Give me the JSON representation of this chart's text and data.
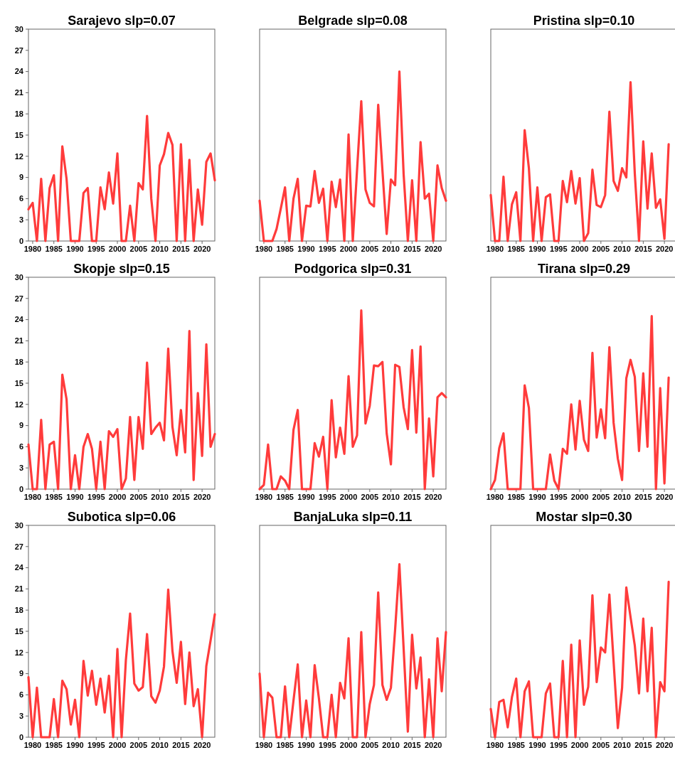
{
  "chart_data": [
    {
      "type": "line",
      "title": "Sarajevo slp=0.07",
      "x": [
        1979,
        1980,
        1981,
        1982,
        1983,
        1984,
        1985,
        1986,
        1987,
        1988,
        1989,
        1990,
        1991,
        1992,
        1993,
        1994,
        1995,
        1996,
        1997,
        1998,
        1999,
        2000,
        2001,
        2002,
        2003,
        2004,
        2005,
        2006,
        2007,
        2008,
        2009,
        2010,
        2011,
        2012,
        2013,
        2014,
        2015,
        2016,
        2017,
        2018,
        2019,
        2020,
        2021,
        2022,
        2023
      ],
      "xlim": [
        1979,
        2023
      ],
      "xticks": [
        1980,
        1985,
        1990,
        1995,
        2000,
        2005,
        2010,
        2015,
        2020
      ],
      "ylim": [
        0,
        30
      ],
      "yticks": [
        0,
        3,
        6,
        9,
        12,
        15,
        18,
        21,
        24,
        27,
        30
      ],
      "series": [
        {
          "color": "#ff3b3b",
          "values": [
            4.5,
            5.4,
            0,
            8.8,
            0,
            7.5,
            9.3,
            0,
            13.4,
            8.8,
            0,
            0,
            0,
            6.8,
            7.5,
            0,
            0,
            7.6,
            4.5,
            9.7,
            5.3,
            12.4,
            0,
            0,
            5.0,
            0,
            8.2,
            7.3,
            17.7,
            6,
            0,
            10.7,
            12.3,
            15.3,
            13.6,
            0,
            13.7,
            0,
            11.5,
            0,
            7.3,
            2.3,
            11.2,
            12.4,
            8.6
          ]
        }
      ]
    },
    {
      "type": "line",
      "title": "Belgrade slp=0.08",
      "x": [
        1979,
        1980,
        1981,
        1982,
        1983,
        1984,
        1985,
        1986,
        1987,
        1988,
        1989,
        1990,
        1991,
        1992,
        1993,
        1994,
        1995,
        1996,
        1997,
        1998,
        1999,
        2000,
        2001,
        2002,
        2003,
        2004,
        2005,
        2006,
        2007,
        2008,
        2009,
        2010,
        2011,
        2012,
        2013,
        2014,
        2015,
        2016,
        2017,
        2018,
        2019,
        2020,
        2021,
        2022,
        2023
      ],
      "xlim": [
        1979,
        2023
      ],
      "xticks": [
        1980,
        1985,
        1990,
        1995,
        2000,
        2005,
        2010,
        2015,
        2020
      ],
      "ylim": [
        0,
        30
      ],
      "yticks": [
        0,
        3,
        6,
        9,
        12,
        15,
        18,
        21,
        24,
        27,
        30
      ],
      "tick_labels": "x",
      "series": [
        {
          "color": "#ff3b3b",
          "values": [
            5.7,
            0,
            0,
            0,
            1.7,
            4.6,
            7.6,
            0,
            6.0,
            8.8,
            0,
            5.0,
            4.9,
            9.9,
            5.4,
            7.4,
            0,
            8.4,
            4.8,
            8.7,
            0,
            15.1,
            0,
            10,
            19.8,
            7.3,
            5.4,
            4.9,
            19.3,
            10,
            1.0,
            8.7,
            7.9,
            24.0,
            9.5,
            0,
            8.6,
            0,
            14.0,
            6.0,
            6.7,
            0,
            10.7,
            7.5,
            5.7
          ]
        }
      ]
    },
    {
      "type": "line",
      "title": "Pristina slp=0.10",
      "x": [
        1979,
        1980,
        1981,
        1982,
        1983,
        1984,
        1985,
        1986,
        1987,
        1988,
        1989,
        1990,
        1991,
        1992,
        1993,
        1994,
        1995,
        1996,
        1997,
        1998,
        1999,
        2000,
        2001,
        2002,
        2003,
        2004,
        2005,
        2006,
        2007,
        2008,
        2009,
        2010,
        2011,
        2012,
        2013,
        2014,
        2015,
        2016,
        2017,
        2018,
        2019,
        2020,
        2021
      ],
      "xlim": [
        1979,
        2023
      ],
      "xticks": [
        1980,
        1985,
        1990,
        1995,
        2000,
        2005,
        2010,
        2015,
        2020
      ],
      "ylim": [
        0,
        30
      ],
      "yticks": [
        0,
        3,
        6,
        9,
        12,
        15,
        18,
        21,
        24,
        27,
        30
      ],
      "tick_labels": "x",
      "series": [
        {
          "color": "#ff3b3b",
          "values": [
            6.5,
            0,
            0,
            9.1,
            0,
            5.2,
            6.9,
            0,
            15.7,
            10.3,
            0,
            7.6,
            0,
            6.2,
            6.6,
            0,
            0,
            8.5,
            5.5,
            9.9,
            5.3,
            8.9,
            0,
            1.1,
            10.1,
            5.1,
            4.8,
            6.5,
            18.3,
            8.5,
            7.1,
            10.3,
            9.0,
            22.5,
            9.6,
            0,
            14.1,
            4.6,
            12.4,
            4.7,
            5.9,
            0.3,
            13.7
          ]
        }
      ]
    },
    {
      "type": "line",
      "title": "Skopje slp=0.15",
      "x": [
        1979,
        1980,
        1981,
        1982,
        1983,
        1984,
        1985,
        1986,
        1987,
        1988,
        1989,
        1990,
        1991,
        1992,
        1993,
        1994,
        1995,
        1996,
        1997,
        1998,
        1999,
        2000,
        2001,
        2002,
        2003,
        2004,
        2005,
        2006,
        2007,
        2008,
        2009,
        2010,
        2011,
        2012,
        2013,
        2014,
        2015,
        2016,
        2017,
        2018,
        2019,
        2020,
        2021,
        2022,
        2023
      ],
      "xlim": [
        1979,
        2023
      ],
      "xticks": [
        1980,
        1985,
        1990,
        1995,
        2000,
        2005,
        2010,
        2015,
        2020
      ],
      "ylim": [
        0,
        30
      ],
      "yticks": [
        0,
        3,
        6,
        9,
        12,
        15,
        18,
        21,
        24,
        27,
        30
      ],
      "series": [
        {
          "color": "#ff3b3b",
          "values": [
            6.3,
            0,
            0,
            9.8,
            0,
            6.3,
            6.7,
            0,
            16.2,
            12.7,
            0,
            4.8,
            0,
            6.0,
            7.8,
            5.7,
            0,
            6.7,
            0,
            8.2,
            7.4,
            8.5,
            0,
            1.5,
            10.2,
            1.3,
            10.2,
            5.7,
            17.9,
            7.8,
            8.7,
            9.4,
            6.9,
            19.9,
            8.8,
            4.8,
            11.2,
            5.2,
            22.4,
            1.3,
            13.6,
            4.7,
            20.5,
            6.0,
            7.8
          ]
        }
      ]
    },
    {
      "type": "line",
      "title": "Podgorica slp=0.31",
      "x": [
        1979,
        1980,
        1981,
        1982,
        1983,
        1984,
        1985,
        1986,
        1987,
        1988,
        1989,
        1990,
        1991,
        1992,
        1993,
        1994,
        1995,
        1996,
        1997,
        1998,
        1999,
        2000,
        2001,
        2002,
        2003,
        2004,
        2005,
        2006,
        2007,
        2008,
        2009,
        2010,
        2011,
        2012,
        2013,
        2014,
        2015,
        2016,
        2017,
        2018,
        2019,
        2020,
        2021,
        2022,
        2023
      ],
      "xlim": [
        1979,
        2023
      ],
      "xticks": [
        1980,
        1985,
        1990,
        1995,
        2000,
        2005,
        2010,
        2015,
        2020
      ],
      "ylim": [
        0,
        30
      ],
      "yticks": [
        0,
        3,
        6,
        9,
        12,
        15,
        18,
        21,
        24,
        27,
        30
      ],
      "tick_labels": "x",
      "series": [
        {
          "color": "#ff3b3b",
          "values": [
            0,
            0.6,
            6.3,
            0,
            0,
            1.8,
            1.2,
            0,
            8.4,
            11.2,
            0,
            0,
            0,
            6.5,
            4.6,
            7.4,
            0,
            12.6,
            4.5,
            8.7,
            5.0,
            16.0,
            6.0,
            7.6,
            25.3,
            9.3,
            11.8,
            17.5,
            17.4,
            18.0,
            7.9,
            3.5,
            17.6,
            17.3,
            11.6,
            8.5,
            19.7,
            8.0,
            20.2,
            0,
            10.0,
            1.8,
            13.0,
            13.6,
            13.0
          ]
        }
      ]
    },
    {
      "type": "line",
      "title": "Tirana slp=0.29",
      "x": [
        1979,
        1980,
        1981,
        1982,
        1983,
        1984,
        1985,
        1986,
        1987,
        1988,
        1989,
        1990,
        1991,
        1992,
        1993,
        1994,
        1995,
        1996,
        1997,
        1998,
        1999,
        2000,
        2001,
        2002,
        2003,
        2004,
        2005,
        2006,
        2007,
        2008,
        2009,
        2010,
        2011,
        2012,
        2013,
        2014,
        2015,
        2016,
        2017,
        2018,
        2019,
        2020,
        2021
      ],
      "xlim": [
        1979,
        2023
      ],
      "xticks": [
        1980,
        1985,
        1990,
        1995,
        2000,
        2005,
        2010,
        2015,
        2020
      ],
      "ylim": [
        0,
        30
      ],
      "yticks": [
        0,
        3,
        6,
        9,
        12,
        15,
        18,
        21,
        24,
        27,
        30
      ],
      "tick_labels": "x",
      "series": [
        {
          "color": "#ff3b3b",
          "values": [
            0,
            1.3,
            5.8,
            7.9,
            0,
            0,
            0,
            0,
            14.7,
            11.5,
            0,
            0,
            0,
            0,
            4.9,
            1.2,
            0,
            5.7,
            5.0,
            12.0,
            5.6,
            12.5,
            7.0,
            5.4,
            19.3,
            7.3,
            11.3,
            7.2,
            20.1,
            9.4,
            4.3,
            1.3,
            15.7,
            18.3,
            15.9,
            5.4,
            16.4,
            6.0,
            24.5,
            0,
            14.3,
            0.8,
            15.8
          ]
        }
      ]
    },
    {
      "type": "line",
      "title": "Subotica slp=0.06",
      "x": [
        1979,
        1980,
        1981,
        1982,
        1983,
        1984,
        1985,
        1986,
        1987,
        1988,
        1989,
        1990,
        1991,
        1992,
        1993,
        1994,
        1995,
        1996,
        1997,
        1998,
        1999,
        2000,
        2001,
        2002,
        2003,
        2004,
        2005,
        2006,
        2007,
        2008,
        2009,
        2010,
        2011,
        2012,
        2013,
        2014,
        2015,
        2016,
        2017,
        2018,
        2019,
        2020,
        2021,
        2022,
        2023
      ],
      "xlim": [
        1979,
        2023
      ],
      "xticks": [
        1980,
        1985,
        1990,
        1995,
        2000,
        2005,
        2010,
        2015,
        2020
      ],
      "ylim": [
        0,
        30
      ],
      "yticks": [
        0,
        3,
        6,
        9,
        12,
        15,
        18,
        21,
        24,
        27,
        30
      ],
      "series": [
        {
          "color": "#ff3b3b",
          "values": [
            8.5,
            0,
            7.0,
            0,
            0,
            0,
            5.4,
            0,
            8.0,
            6.8,
            1.8,
            5.3,
            0,
            10.8,
            5.9,
            9.4,
            4.6,
            8.3,
            3.5,
            8.7,
            0,
            12.5,
            0,
            10.9,
            17.5,
            7.6,
            6.6,
            7.1,
            14.6,
            5.8,
            4.9,
            6.6,
            10.0,
            20.9,
            12.2,
            7.7,
            13.5,
            4.7,
            12.0,
            4.4,
            6.8,
            0,
            10.1,
            13.7,
            17.4
          ]
        }
      ]
    },
    {
      "type": "line",
      "title": "BanjaLuka slp=0.11",
      "x": [
        1979,
        1980,
        1981,
        1982,
        1983,
        1984,
        1985,
        1986,
        1987,
        1988,
        1989,
        1990,
        1991,
        1992,
        1993,
        1994,
        1995,
        1996,
        1997,
        1998,
        1999,
        2000,
        2001,
        2002,
        2003,
        2004,
        2005,
        2006,
        2007,
        2008,
        2009,
        2010,
        2011,
        2012,
        2013,
        2014,
        2015,
        2016,
        2017,
        2018,
        2019,
        2020,
        2021,
        2022,
        2023
      ],
      "xlim": [
        1979,
        2023
      ],
      "xticks": [
        1980,
        1985,
        1990,
        1995,
        2000,
        2005,
        2010,
        2015,
        2020
      ],
      "ylim": [
        0,
        30
      ],
      "yticks": [
        0,
        3,
        6,
        9,
        12,
        15,
        18,
        21,
        24,
        27,
        30
      ],
      "tick_labels": "x",
      "series": [
        {
          "color": "#ff3b3b",
          "values": [
            9.0,
            0,
            6.3,
            5.6,
            0,
            0,
            7.2,
            0,
            5.2,
            10.3,
            0,
            5.2,
            0,
            10.2,
            5.5,
            0,
            0,
            6.0,
            0,
            7.7,
            5.5,
            14.0,
            0,
            0,
            14.9,
            0,
            4.7,
            7.4,
            20.5,
            7.4,
            5.3,
            7.0,
            15.3,
            24.5,
            12.6,
            0.8,
            14.5,
            6.9,
            11.3,
            0,
            8.2,
            0,
            14.0,
            6.5,
            14.9
          ]
        }
      ]
    },
    {
      "type": "line",
      "title": "Mostar slp=0.30",
      "x": [
        1979,
        1980,
        1981,
        1982,
        1983,
        1984,
        1985,
        1986,
        1987,
        1988,
        1989,
        1990,
        1991,
        1992,
        1993,
        1994,
        1995,
        1996,
        1997,
        1998,
        1999,
        2000,
        2001,
        2002,
        2003,
        2004,
        2005,
        2006,
        2007,
        2008,
        2009,
        2010,
        2011,
        2012,
        2013,
        2014,
        2015,
        2016,
        2017,
        2018,
        2019,
        2020,
        2021
      ],
      "xlim": [
        1979,
        2023
      ],
      "xticks": [
        1980,
        1985,
        1990,
        1995,
        2000,
        2005,
        2010,
        2015,
        2020
      ],
      "ylim": [
        0,
        30
      ],
      "yticks": [
        0,
        3,
        6,
        9,
        12,
        15,
        18,
        21,
        24,
        27,
        30
      ],
      "tick_labels": "x",
      "series": [
        {
          "color": "#ff3b3b",
          "values": [
            4.0,
            0,
            5.0,
            5.3,
            1.4,
            5.7,
            8.3,
            0,
            6.5,
            7.9,
            0,
            0,
            0,
            6.2,
            7.6,
            0,
            0,
            10.8,
            0,
            13.1,
            0,
            13.7,
            4.6,
            7.1,
            20.1,
            7.8,
            12.7,
            12.0,
            20.2,
            10.7,
            1.3,
            7.0,
            21.2,
            17.0,
            13.0,
            6.2,
            16.8,
            6.5,
            15.5,
            0,
            7.8,
            6.5,
            22.0
          ]
        }
      ]
    }
  ]
}
